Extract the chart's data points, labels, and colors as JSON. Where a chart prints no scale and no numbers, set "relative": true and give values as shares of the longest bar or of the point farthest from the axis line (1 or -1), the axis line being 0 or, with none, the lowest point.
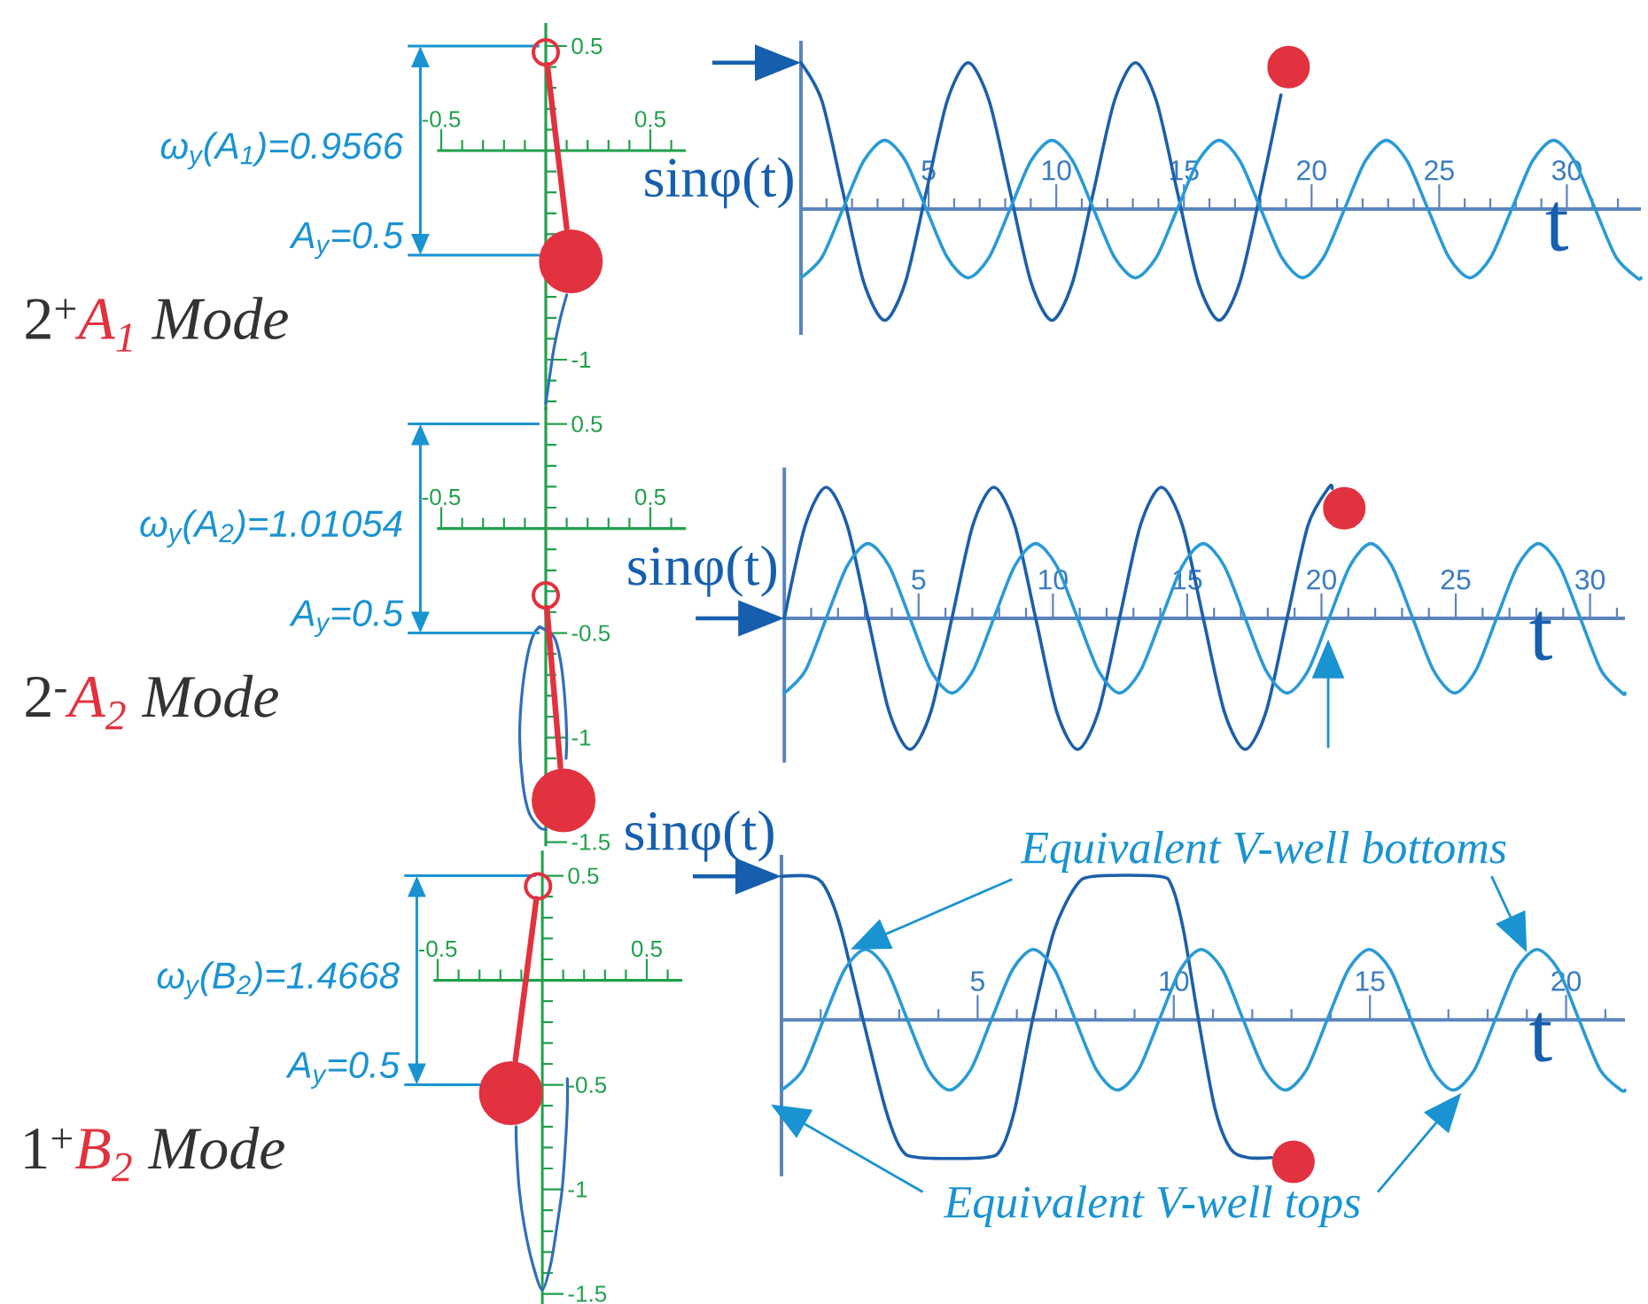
{
  "chart_data": [
    {
      "type": "line",
      "xlim": [
        -0.52,
        0.67
      ],
      "ylim": [
        -1.24,
        0.61
      ],
      "xticks": [
        -0.5,
        {
          "value": -0.4,
          "label": null
        },
        {
          "value": -0.3,
          "label": null
        },
        {
          "value": -0.2,
          "label": null
        },
        {
          "value": -0.1,
          "label": null
        },
        {
          "value": 0.1,
          "label": null
        },
        {
          "value": 0.2,
          "label": null
        },
        {
          "value": 0.3,
          "label": null
        },
        {
          "value": 0.4,
          "label": null
        },
        0.5,
        {
          "value": 0.6,
          "label": null
        }
      ],
      "yticks": [
        0.5,
        {
          "value": 0.4,
          "label": null
        },
        {
          "value": 0.3,
          "label": null
        },
        {
          "value": 0.2,
          "label": null
        },
        {
          "value": 0.1,
          "label": null
        },
        {
          "value": -0.1,
          "label": null
        },
        {
          "value": -0.2,
          "label": null
        },
        {
          "value": -0.3,
          "label": null
        },
        {
          "value": -0.4,
          "label": null
        },
        {
          "value": -0.5,
          "label": null
        },
        {
          "value": -0.6,
          "label": null
        },
        {
          "value": -0.7,
          "label": null
        },
        {
          "value": -0.8,
          "label": null
        },
        {
          "value": -0.9,
          "label": null
        },
        -1,
        {
          "value": -1.1,
          "label": null
        },
        {
          "value": -1.2,
          "label": null
        }
      ],
      "series": [
        {
          "color": "#2f6fba",
          "x": [
            0.1,
            0.07,
            0.04,
            0.02,
            0
          ],
          "values": [
            -0.69,
            -0.8,
            -0.94,
            -1.07,
            -1.21
          ]
        },
        {
          "color": "#e2323f",
          "x": [
            0.007,
            0.1
          ],
          "values": [
            0.41,
            -0.37
          ]
        },
        {
          "type": "scatter",
          "color": "#e2323f",
          "marker": "circle",
          "x": [
            0
          ],
          "values": [
            0.47
          ]
        },
        {
          "type": "scatter",
          "color": "#e2323f",
          "marker": "circle",
          "x": [
            0.12
          ],
          "values": [
            -0.53
          ]
        }
      ],
      "ref_lines": [
        {
          "axis": "y",
          "value": 0.5,
          "color": "#1a93d2"
        },
        {
          "axis": "y",
          "value": -0.5,
          "color": "#1a93d2"
        }
      ],
      "annotations": [
        "ω$_{y}$(A$_{1}$)=0.9566",
        "A$_{y}$=0.5",
        "2$^{+}$",
        "A$_{1}$",
        "Mode"
      ]
    },
    {
      "type": "line",
      "relative": true,
      "xlim": [
        0,
        32.9
      ],
      "xticks": [
        {
          "value": 1,
          "label": null
        },
        {
          "value": 2,
          "label": null
        },
        {
          "value": 3,
          "label": null
        },
        {
          "value": 4,
          "label": null
        },
        5,
        {
          "value": 6,
          "label": null
        },
        {
          "value": 7,
          "label": null
        },
        {
          "value": 8,
          "label": null
        },
        {
          "value": 9,
          "label": null
        },
        10,
        {
          "value": 11,
          "label": null
        },
        {
          "value": 12,
          "label": null
        },
        {
          "value": 13,
          "label": null
        },
        {
          "value": 14,
          "label": null
        },
        15,
        {
          "value": 16,
          "label": null
        },
        {
          "value": 17,
          "label": null
        },
        {
          "value": 18,
          "label": null
        },
        {
          "value": 19,
          "label": null
        },
        20,
        {
          "value": 21,
          "label": null
        },
        {
          "value": 22,
          "label": null
        },
        {
          "value": 23,
          "label": null
        },
        {
          "value": 24,
          "label": null
        },
        25,
        {
          "value": 26,
          "label": null
        },
        {
          "value": 27,
          "label": null
        },
        {
          "value": 28,
          "label": null
        },
        {
          "value": 29,
          "label": null
        },
        30,
        {
          "value": 31,
          "label": null
        },
        {
          "value": 32,
          "label": null
        }
      ],
      "xlabel": "t",
      "ylabel": "sinφ(t)",
      "series": [
        {
          "color": "#1c5faa",
          "x": [
            0,
            0.82,
            1.64,
            2.46,
            3.28,
            4.09,
            4.91,
            5.73,
            6.55,
            7.37,
            8.19,
            9.01,
            9.83,
            10.64,
            11.46,
            12.28,
            13.1,
            13.92,
            14.74,
            15.56,
            16.38,
            17.19,
            18.01,
            18.8
          ],
          "values": [
            1,
            0.74,
            0.12,
            -0.5,
            -0.76,
            -0.5,
            0.12,
            0.74,
            1,
            0.74,
            0.12,
            -0.5,
            -0.76,
            -0.5,
            0.12,
            0.74,
            1,
            0.74,
            0.12,
            -0.5,
            -0.76,
            -0.5,
            0.12,
            0.78
          ]
        },
        {
          "color": "#2a9ad6",
          "x": [
            0,
            0.82,
            1.64,
            2.46,
            3.28,
            4.09,
            4.91,
            5.73,
            6.55,
            7.37,
            8.19,
            9.01,
            9.83,
            10.64,
            11.46,
            12.28,
            13.1,
            13.92,
            14.74,
            15.56,
            16.38,
            17.19,
            18.01,
            18.83,
            19.65,
            20.47,
            21.29,
            22.11,
            22.93,
            23.74,
            24.56,
            25.38,
            26.2,
            27.02,
            27.84,
            28.66,
            29.48,
            30.29,
            31.11,
            31.93,
            32.75,
            32.9
          ],
          "values": [
            -0.47,
            -0.33,
            0,
            0.33,
            0.47,
            0.33,
            0,
            -0.33,
            -0.47,
            -0.33,
            0,
            0.33,
            0.47,
            0.33,
            0,
            -0.33,
            -0.47,
            -0.33,
            0,
            0.33,
            0.47,
            0.33,
            0,
            -0.33,
            -0.47,
            -0.33,
            0,
            0.33,
            0.47,
            0.33,
            0,
            -0.33,
            -0.47,
            -0.33,
            0,
            0.33,
            0.47,
            0.33,
            0,
            -0.33,
            -0.47,
            -0.47
          ]
        },
        {
          "type": "scatter",
          "color": "#e2323f",
          "marker": "circle",
          "x": [
            19.1
          ],
          "values": [
            0.97
          ]
        }
      ]
    },
    {
      "type": "line",
      "xlim": [
        -0.52,
        0.67
      ],
      "ylim": [
        -1.52,
        0.58
      ],
      "xticks": [
        -0.5,
        {
          "value": -0.4,
          "label": null
        },
        {
          "value": -0.3,
          "label": null
        },
        {
          "value": -0.2,
          "label": null
        },
        {
          "value": -0.1,
          "label": null
        },
        {
          "value": 0.1,
          "label": null
        },
        {
          "value": 0.2,
          "label": null
        },
        {
          "value": 0.3,
          "label": null
        },
        {
          "value": 0.4,
          "label": null
        },
        0.5,
        {
          "value": 0.6,
          "label": null
        }
      ],
      "yticks": [
        0.5,
        {
          "value": 0.4,
          "label": null
        },
        {
          "value": 0.3,
          "label": null
        },
        {
          "value": 0.2,
          "label": null
        },
        {
          "value": 0.1,
          "label": null
        },
        {
          "value": -0.1,
          "label": null
        },
        {
          "value": -0.2,
          "label": null
        },
        {
          "value": -0.3,
          "label": null
        },
        {
          "value": -0.4,
          "label": null
        },
        -0.5,
        {
          "value": -0.6,
          "label": null
        },
        {
          "value": -0.7,
          "label": null
        },
        {
          "value": -0.8,
          "label": null
        },
        {
          "value": -0.9,
          "label": null
        },
        -1,
        {
          "value": -1.1,
          "label": null
        },
        {
          "value": -1.2,
          "label": null
        },
        {
          "value": -1.3,
          "label": null
        },
        {
          "value": -1.4,
          "label": null
        },
        -1.5
      ],
      "series": [
        {
          "color": "#2f6fba",
          "x": [
            -0.03,
            0.04,
            0.07,
            0.09,
            0.1,
            0.097,
            0.06,
            0.0,
            -0.03,
            -0.08,
            -0.11,
            -0.125,
            -0.115,
            -0.09,
            -0.06,
            -0.03
          ],
          "values": [
            -0.47,
            -0.52,
            -0.63,
            -0.8,
            -0.99,
            -1.1,
            null,
            -1.44,
            -1.43,
            -1.36,
            -1.22,
            -1.0,
            -0.8,
            -0.62,
            -0.51,
            -0.47
          ]
        },
        {
          "color": "#e2323f",
          "x": [
            0.005,
            0.07
          ],
          "values": [
            -0.38,
            -1.14
          ]
        },
        {
          "type": "scatter",
          "color": "#e2323f",
          "marker": "circle",
          "x": [
            0
          ],
          "values": [
            -0.32
          ]
        },
        {
          "type": "scatter",
          "color": "#e2323f",
          "marker": "circle",
          "x": [
            0.085
          ],
          "values": [
            -1.3
          ]
        }
      ],
      "ref_lines": [
        {
          "axis": "y",
          "value": 0.5,
          "color": "#1a93d2"
        },
        {
          "axis": "y",
          "value": -0.5,
          "color": "#1a93d2"
        }
      ],
      "annotations": [
        "ω$_{y}$(A$_{2}$)=1.01054",
        "A$_{y}$=0.5",
        "2$^{-}$",
        "A$_{2}$",
        "Mode"
      ]
    },
    {
      "type": "line",
      "relative": true,
      "xlim": [
        0,
        31.3
      ],
      "xticks": [
        {
          "value": 1,
          "label": null
        },
        {
          "value": 2,
          "label": null
        },
        {
          "value": 3,
          "label": null
        },
        {
          "value": 4,
          "label": null
        },
        5,
        {
          "value": 6,
          "label": null
        },
        {
          "value": 7,
          "label": null
        },
        {
          "value": 8,
          "label": null
        },
        {
          "value": 9,
          "label": null
        },
        10,
        {
          "value": 11,
          "label": null
        },
        {
          "value": 12,
          "label": null
        },
        {
          "value": 13,
          "label": null
        },
        {
          "value": 14,
          "label": null
        },
        15,
        {
          "value": 16,
          "label": null
        },
        {
          "value": 17,
          "label": null
        },
        {
          "value": 18,
          "label": null
        },
        {
          "value": 19,
          "label": null
        },
        20,
        {
          "value": 21,
          "label": null
        },
        {
          "value": 22,
          "label": null
        },
        {
          "value": 23,
          "label": null
        },
        {
          "value": 24,
          "label": null
        },
        25,
        {
          "value": 26,
          "label": null
        },
        {
          "value": 27,
          "label": null
        },
        {
          "value": 28,
          "label": null
        },
        {
          "value": 29,
          "label": null
        },
        30,
        {
          "value": 31,
          "label": null
        }
      ],
      "xlabel": "t",
      "ylabel": "sinφ(t)",
      "series": [
        {
          "color": "#1c5faa",
          "x": [
            0,
            0.78,
            1.56,
            2.34,
            3.12,
            3.9,
            4.68,
            5.46,
            6.24,
            7.02,
            7.8,
            8.58,
            9.36,
            10.14,
            10.92,
            11.7,
            12.48,
            13.26,
            14.04,
            14.82,
            15.6,
            16.38,
            17.16,
            17.94,
            18.72,
            19.5,
            20.28,
            20.4
          ],
          "values": [
            0,
            0.71,
            1,
            0.71,
            0,
            -0.71,
            -1,
            -0.71,
            0,
            0.71,
            1,
            0.71,
            0,
            -0.71,
            -1,
            -0.71,
            0,
            0.71,
            1,
            0.71,
            0,
            -0.71,
            -1,
            -0.71,
            0,
            0.71,
            1,
            0.99
          ]
        },
        {
          "color": "#2a9ad6",
          "x": [
            0,
            0.78,
            1.56,
            2.34,
            3.12,
            3.9,
            4.68,
            5.46,
            6.24,
            7.02,
            7.8,
            8.58,
            9.36,
            10.14,
            10.92,
            11.7,
            12.48,
            13.26,
            14.04,
            14.82,
            15.6,
            16.38,
            17.16,
            17.94,
            18.72,
            19.5,
            20.28,
            21.06,
            21.84,
            22.62,
            23.4,
            24.18,
            24.96,
            25.74,
            26.52,
            27.3,
            28.08,
            28.86,
            29.64,
            30.42,
            31.2,
            31.3
          ],
          "values": [
            -0.57,
            -0.4,
            0,
            0.4,
            0.57,
            0.4,
            0,
            -0.4,
            -0.57,
            -0.4,
            0,
            0.4,
            0.57,
            0.4,
            0,
            -0.4,
            -0.57,
            -0.4,
            0,
            0.4,
            0.57,
            0.4,
            0,
            -0.4,
            -0.57,
            -0.4,
            0,
            0.4,
            0.57,
            0.4,
            0,
            -0.4,
            -0.57,
            -0.4,
            0,
            0.4,
            0.57,
            0.4,
            0,
            -0.4,
            -0.57,
            -0.57
          ]
        },
        {
          "type": "scatter",
          "color": "#e2323f",
          "marker": "circle",
          "x": [
            20.85
          ],
          "values": [
            0.84
          ]
        }
      ]
    },
    {
      "type": "line",
      "xlim": [
        -0.52,
        0.67
      ],
      "ylim": [
        -1.55,
        0.62
      ],
      "xticks": [
        -0.5,
        {
          "value": -0.4,
          "label": null
        },
        {
          "value": -0.3,
          "label": null
        },
        {
          "value": -0.2,
          "label": null
        },
        {
          "value": -0.1,
          "label": null
        },
        {
          "value": 0.1,
          "label": null
        },
        {
          "value": 0.2,
          "label": null
        },
        {
          "value": 0.3,
          "label": null
        },
        {
          "value": 0.4,
          "label": null
        },
        0.5,
        {
          "value": 0.6,
          "label": null
        }
      ],
      "yticks": [
        0.5,
        {
          "value": 0.4,
          "label": null
        },
        {
          "value": 0.3,
          "label": null
        },
        {
          "value": 0.2,
          "label": null
        },
        {
          "value": 0.1,
          "label": null
        },
        {
          "value": -0.1,
          "label": null
        },
        {
          "value": -0.2,
          "label": null
        },
        {
          "value": -0.3,
          "label": null
        },
        {
          "value": -0.4,
          "label": null
        },
        -0.5,
        {
          "value": -0.6,
          "label": null
        },
        {
          "value": -0.7,
          "label": null
        },
        {
          "value": -0.8,
          "label": null
        },
        {
          "value": -0.9,
          "label": null
        },
        -1,
        {
          "value": -1.1,
          "label": null
        },
        {
          "value": -1.2,
          "label": null
        },
        {
          "value": -1.3,
          "label": null
        },
        {
          "value": -1.4,
          "label": null
        },
        -1.5
      ],
      "series": [
        {
          "color": "#2f6fba",
          "x": [
            -0.125,
            -0.123,
            -0.11,
            -0.085,
            -0.045,
            0,
            0.04,
            0.07,
            0.095,
            0.11,
            0.12,
            0.12
          ],
          "values": [
            -0.7,
            -0.8,
            -1.0,
            -1.18,
            -1.36,
            -1.48,
            -1.36,
            -1.18,
            -1.0,
            -0.8,
            -0.6,
            -0.47
          ]
        },
        {
          "color": "#e2323f",
          "x": [
            -0.028,
            -0.128
          ],
          "values": [
            0.39,
            -0.38
          ]
        },
        {
          "type": "scatter",
          "color": "#e2323f",
          "marker": "circle",
          "x": [
            -0.02
          ],
          "values": [
            0.45
          ]
        },
        {
          "type": "scatter",
          "color": "#e2323f",
          "marker": "circle",
          "x": [
            -0.15
          ],
          "values": [
            -0.54
          ]
        }
      ],
      "ref_lines": [
        {
          "axis": "y",
          "value": 0.5,
          "color": "#1a93d2"
        },
        {
          "axis": "y",
          "value": -0.5,
          "color": "#1a93d2"
        }
      ],
      "annotations": [
        "ω$_{y}$(B$_{2}$)=1.4668",
        "A$_{y}$=0.5",
        "1$^{+}$",
        "B$_{2}$",
        "Mode"
      ]
    },
    {
      "type": "line",
      "relative": true,
      "xlim": [
        0,
        21.5
      ],
      "xticks": [
        {
          "value": 1,
          "label": null
        },
        {
          "value": 2,
          "label": null
        },
        {
          "value": 3,
          "label": null
        },
        {
          "value": 4,
          "label": null
        },
        5,
        {
          "value": 6,
          "label": null
        },
        {
          "value": 7,
          "label": null
        },
        {
          "value": 8,
          "label": null
        },
        {
          "value": 9,
          "label": null
        },
        10,
        {
          "value": 11,
          "label": null
        },
        {
          "value": 12,
          "label": null
        },
        {
          "value": 13,
          "label": null
        },
        {
          "value": 14,
          "label": null
        },
        15,
        {
          "value": 16,
          "label": null
        },
        {
          "value": 17,
          "label": null
        },
        {
          "value": 18,
          "label": null
        },
        {
          "value": 19,
          "label": null
        },
        20,
        {
          "value": 21,
          "label": null
        }
      ],
      "xlabel": "t",
      "ylabel": "sinφ(t)",
      "series": [
        {
          "color": "#1c5faa",
          "x": [
            0,
            0.74,
            1.1,
            1.5,
            2.08,
            2.65,
            3.05,
            3.5,
            5.18,
            5.6,
            5.95,
            6.4,
            6.95,
            7.5,
            7.95,
            9.62,
            9.95,
            10.25,
            10.63,
            11.05,
            11.45,
            11.89,
            12.5
          ],
          "values": [
            1,
            1,
            0.93,
            0.65,
            0,
            -0.62,
            -0.9,
            -0.96,
            -0.96,
            -0.9,
            -0.62,
            0,
            0.62,
            0.93,
            1,
            1,
            0.93,
            0.62,
            0,
            -0.62,
            -0.9,
            -0.96,
            -0.96
          ]
        },
        {
          "color": "#2a9ad6",
          "x": [
            0,
            0.54,
            1.07,
            1.61,
            2.14,
            2.68,
            3.21,
            3.75,
            4.28,
            4.82,
            5.35,
            5.89,
            6.42,
            6.96,
            7.49,
            8.03,
            8.56,
            9.1,
            9.63,
            10.17,
            10.7,
            11.24,
            11.77,
            12.31,
            12.84,
            13.38,
            13.91,
            14.45,
            14.98,
            15.52,
            16.05,
            16.59,
            17.12,
            17.66,
            18.19,
            18.73,
            19.26,
            19.8,
            20.33,
            20.87,
            21.4,
            21.5
          ],
          "values": [
            -0.49,
            -0.35,
            0,
            0.35,
            0.49,
            0.35,
            0,
            -0.35,
            -0.49,
            -0.35,
            0,
            0.35,
            0.49,
            0.35,
            0,
            -0.35,
            -0.49,
            -0.35,
            0,
            0.35,
            0.49,
            0.35,
            0,
            -0.35,
            -0.49,
            -0.35,
            0,
            0.35,
            0.49,
            0.35,
            0,
            -0.35,
            -0.49,
            -0.35,
            0,
            0.35,
            0.49,
            0.35,
            0,
            -0.35,
            -0.49,
            -0.49
          ]
        },
        {
          "type": "scatter",
          "color": "#e2323f",
          "marker": "circle",
          "x": [
            13.05
          ],
          "values": [
            -0.99
          ]
        }
      ],
      "annotations": [
        "Equivalent V-well bottoms",
        "Equivalent V-well tops"
      ]
    }
  ]
}
